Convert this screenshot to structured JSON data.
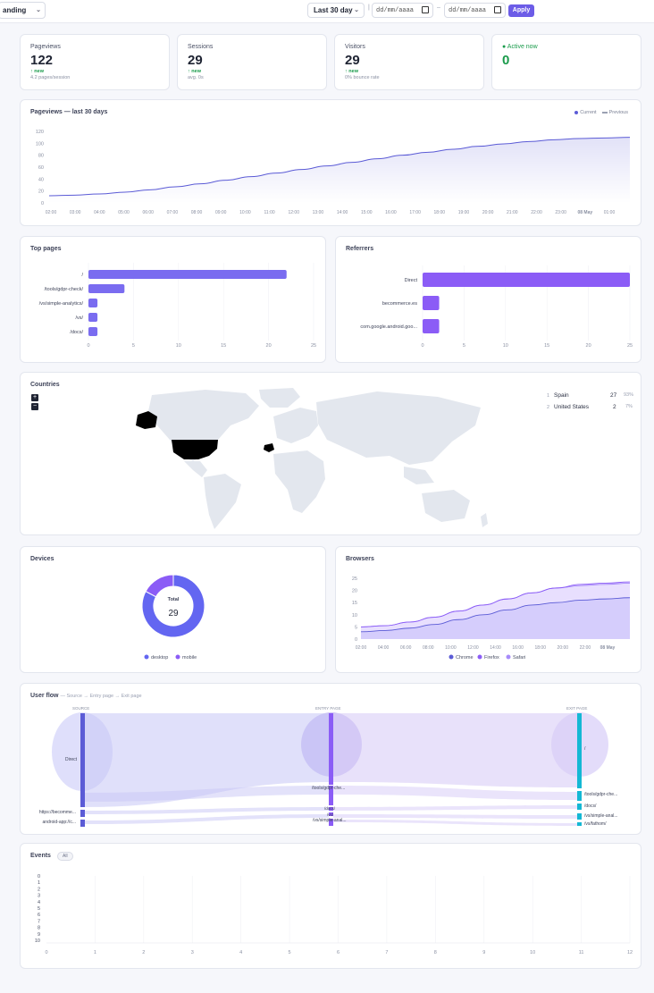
{
  "topbar": {
    "site": "anding",
    "range": "Last 30 day",
    "date_from": "dd/mm/aaaa",
    "date_to": "dd/mm/aaaa",
    "range_sep": "–",
    "apply_label": "Apply"
  },
  "stats": [
    {
      "label": "Pageviews",
      "value": "122",
      "change": "↑ new",
      "sub": "4.2 pages/session"
    },
    {
      "label": "Sessions",
      "value": "29",
      "change": "↑ new",
      "sub": "avg. 0s"
    },
    {
      "label": "Visitors",
      "value": "29",
      "change": "↑ new",
      "sub": "0% bounce rate"
    },
    {
      "label": "● Active now",
      "value": "0",
      "change": "",
      "sub": ""
    }
  ],
  "colors": {
    "accent": "#6c5ce7",
    "line": "#5b5bd6",
    "purple": "#8b5cf6",
    "cyan": "#14b8d4",
    "green": "#1a9b4b"
  },
  "pageviews_chart": {
    "title": "Pageviews — last 30 days",
    "legend_current": "Current",
    "legend_previous": "Previous",
    "chart_data": {
      "type": "area",
      "y_ticks": [
        "120",
        "100",
        "80",
        "60",
        "40",
        "20",
        "0"
      ],
      "ylim": [
        0,
        120
      ],
      "x_ticks": [
        "02:00",
        "03:00",
        "04:00",
        "05:00",
        "06:00",
        "07:00",
        "08:00",
        "09:00",
        "10:00",
        "11:00",
        "12:00",
        "13:00",
        "14:00",
        "15:00",
        "16:00",
        "17:00",
        "18:00",
        "19:00",
        "20:00",
        "21:00",
        "22:00",
        "23:00",
        "08 May",
        "01:00"
      ],
      "series": [
        {
          "name": "Current",
          "values": [
            12,
            13,
            15,
            18,
            22,
            27,
            32,
            38,
            44,
            50,
            56,
            62,
            68,
            74,
            80,
            85,
            90,
            95,
            99,
            103,
            106,
            108,
            109,
            110
          ]
        }
      ]
    }
  },
  "top_pages": {
    "title": "Top pages",
    "chart_data": {
      "type": "bar",
      "categories": [
        "/",
        "/tools/gdpr-check/",
        "/vs/simple-analytics/",
        "/vs/",
        "/docs/"
      ],
      "values": [
        22,
        4,
        1,
        1,
        1
      ],
      "x_ticks": [
        "0",
        "5",
        "10",
        "15",
        "20",
        "25"
      ],
      "xlim": [
        0,
        25
      ]
    }
  },
  "referrers": {
    "title": "Referrers",
    "chart_data": {
      "type": "bar",
      "categories": [
        "Direct",
        "becommerce.es",
        "com.google.android.goo..."
      ],
      "values": [
        25,
        2,
        2
      ],
      "x_ticks": [
        "0",
        "5",
        "10",
        "15",
        "20",
        "25"
      ],
      "xlim": [
        0,
        25
      ]
    }
  },
  "countries": {
    "title": "Countries",
    "zoom_in": "+",
    "zoom_out": "−",
    "rows": [
      {
        "rank": "1",
        "name": "Spain",
        "count": "27",
        "pct": "93%"
      },
      {
        "rank": "2",
        "name": "United States",
        "count": "2",
        "pct": "7%"
      }
    ]
  },
  "devices": {
    "title": "Devices",
    "center_label": "Total",
    "center_value": "29",
    "chart_data": {
      "type": "pie",
      "categories": [
        "desktop",
        "mobile"
      ],
      "values": [
        24,
        5
      ]
    }
  },
  "browsers": {
    "title": "Browsers",
    "chart_data": {
      "type": "area",
      "y_ticks": [
        "25",
        "20",
        "15",
        "10",
        "5",
        "0"
      ],
      "ylim": [
        0,
        25
      ],
      "x_ticks": [
        "02:00",
        "04:00",
        "06:00",
        "08:00",
        "10:00",
        "12:00",
        "14:00",
        "16:00",
        "18:00",
        "20:00",
        "22:00",
        "08 May"
      ],
      "series": [
        {
          "name": "Chrome",
          "values": [
            3,
            3.5,
            4.5,
            6,
            8,
            10,
            12,
            14,
            15,
            16,
            16.5,
            17
          ]
        },
        {
          "name": "Firefox",
          "values": [
            5,
            5.5,
            7,
            9,
            11.5,
            14,
            16.5,
            19,
            21,
            22.5,
            23,
            23.5
          ]
        },
        {
          "name": "Safari",
          "values": [
            5,
            5.5,
            7,
            9,
            11.5,
            14,
            16.5,
            19,
            21,
            22,
            22.5,
            23
          ]
        }
      ]
    }
  },
  "user_flow": {
    "title": "User flow",
    "subtitle": "— Source → Entry page → Exit page",
    "col_source": "SOURCE",
    "col_entry": "ENTRY PAGE",
    "col_exit": "EXIT PAGE",
    "sources": [
      "Direct",
      "https://becomme...",
      "android-app://c..."
    ],
    "entries": [
      "/",
      "/tools/gdpr-che...",
      "/docs/",
      "/vs/",
      "/vs/simple-anal..."
    ],
    "exits": [
      "/",
      "/tools/gdpr-che...",
      "/docs/",
      "/vs/simple-anal...",
      "/vs/fathom/"
    ]
  },
  "events": {
    "title": "Events",
    "badge": "All",
    "chart_data": {
      "type": "bar",
      "categories": [],
      "values": [],
      "y_ticks": [
        "0",
        "1",
        "2",
        "3",
        "4",
        "5",
        "6",
        "7",
        "8",
        "9",
        "10"
      ],
      "x_ticks": [
        "0",
        "1",
        "2",
        "3",
        "4",
        "5",
        "6",
        "7",
        "8",
        "9",
        "10",
        "11",
        "12"
      ]
    }
  }
}
